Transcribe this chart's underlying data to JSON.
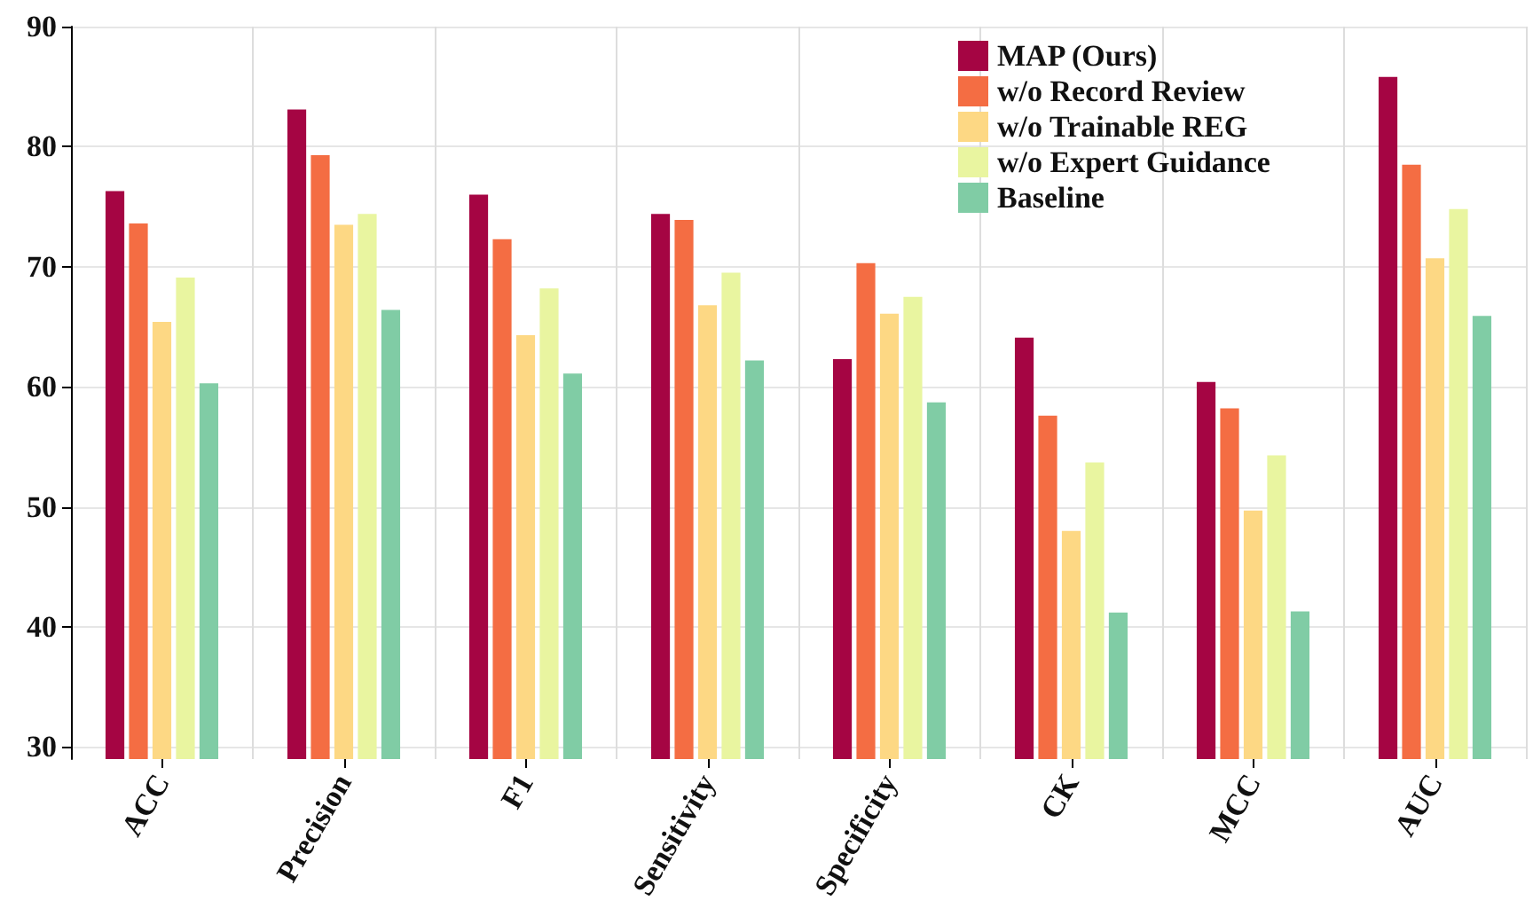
{
  "chart_data": {
    "type": "bar",
    "categories": [
      "ACC",
      "Precision",
      "F1",
      "Sensitivity",
      "Specificity",
      "CK",
      "MCC",
      "AUC"
    ],
    "series": [
      {
        "name": "MAP (Ours)",
        "color": "#a50543",
        "values": [
          76.3,
          83.1,
          76.0,
          74.4,
          62.3,
          64.1,
          60.4,
          85.8
        ]
      },
      {
        "name": "w/o Record Review",
        "color": "#f46d43",
        "values": [
          73.6,
          79.3,
          72.3,
          73.9,
          70.3,
          57.6,
          58.2,
          78.5
        ]
      },
      {
        "name": "w/o Trainable REG",
        "color": "#fdd884",
        "values": [
          65.4,
          73.5,
          64.3,
          66.8,
          66.1,
          48.0,
          49.7,
          70.7
        ]
      },
      {
        "name": "w/o Expert Guidance",
        "color": "#e9f5a0",
        "values": [
          69.1,
          74.4,
          68.2,
          69.5,
          67.5,
          53.7,
          54.3,
          74.8
        ]
      },
      {
        "name": "Baseline",
        "color": "#80cca5",
        "values": [
          60.3,
          66.4,
          61.1,
          62.2,
          58.7,
          41.2,
          41.3,
          65.9
        ]
      }
    ],
    "ylim": [
      29,
      90
    ],
    "yticks": [
      30,
      40,
      50,
      60,
      70,
      80,
      90
    ],
    "grid": true,
    "legend": "top"
  }
}
